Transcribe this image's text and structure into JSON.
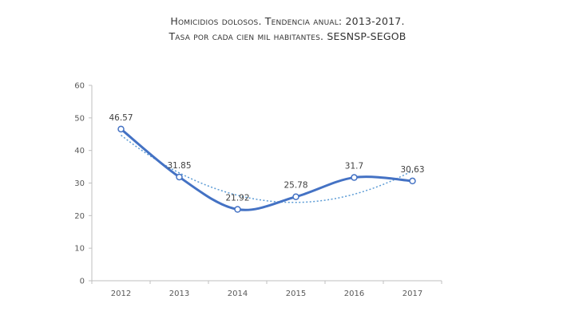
{
  "chart_data": {
    "type": "line",
    "title": "Homicidios dolosos. Tendencia anual: 2013-2017.",
    "subtitle": "Tasa por cada cien mil habitantes. SESNSP-SEGOB",
    "xlabel": "",
    "ylabel": "",
    "categories": [
      "2012",
      "2013",
      "2014",
      "2015",
      "2016",
      "2017"
    ],
    "values": [
      46.57,
      31.85,
      21.92,
      25.78,
      31.7,
      30.63
    ],
    "data_labels": [
      "46.57",
      "31.85",
      "21.92",
      "25.78",
      "31.7",
      "30,63"
    ],
    "trendline": {
      "type": "polynomial",
      "style": "dotted"
    },
    "ylim": [
      0,
      60
    ],
    "yticks": [
      "0",
      "10",
      "20",
      "30",
      "40",
      "50",
      "60"
    ],
    "grid": false,
    "legend": "none",
    "colors": {
      "series": "#4472c4",
      "trend": "#5b9bd5",
      "axis": "#bfbfbf",
      "text": "#595959"
    }
  }
}
